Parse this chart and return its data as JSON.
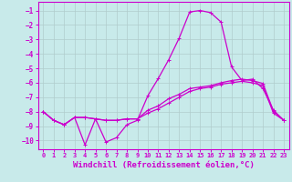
{
  "background_color": "#c8eaea",
  "grid_color": "#b0cccc",
  "line_color": "#cc00cc",
  "xlabel": "Windchill (Refroidissement éolien,°C)",
  "xlabel_fontsize": 6.5,
  "xlim": [
    -0.5,
    23.5
  ],
  "ylim": [
    -10.6,
    -0.4
  ],
  "yticks": [
    -1,
    -2,
    -3,
    -4,
    -5,
    -6,
    -7,
    -8,
    -9,
    -10
  ],
  "xticks": [
    0,
    1,
    2,
    3,
    4,
    5,
    6,
    7,
    8,
    9,
    10,
    11,
    12,
    13,
    14,
    15,
    16,
    17,
    18,
    19,
    20,
    21,
    22,
    23
  ],
  "line1_x": [
    0,
    1,
    2,
    3,
    4,
    5,
    6,
    7,
    8,
    9,
    10,
    11,
    12,
    13,
    14,
    15,
    16,
    17,
    18,
    19,
    20,
    21,
    22,
    23
  ],
  "line1_y": [
    -8.0,
    -8.6,
    -8.9,
    -8.4,
    -10.3,
    -8.5,
    -10.1,
    -9.8,
    -8.9,
    -8.6,
    -6.9,
    -5.7,
    -4.4,
    -2.9,
    -1.1,
    -1.0,
    -1.15,
    -1.8,
    -4.9,
    -5.85,
    -5.75,
    -6.4,
    -7.9,
    -8.6
  ],
  "line2_x": [
    0,
    1,
    2,
    3,
    4,
    5,
    6,
    7,
    8,
    9,
    10,
    11,
    12,
    13,
    14,
    15,
    16,
    17,
    18,
    19,
    20,
    21,
    22,
    23
  ],
  "line2_y": [
    -8.0,
    -8.6,
    -8.9,
    -8.4,
    -8.4,
    -8.5,
    -8.6,
    -8.6,
    -8.5,
    -8.5,
    -8.1,
    -7.8,
    -7.4,
    -7.0,
    -6.6,
    -6.4,
    -6.3,
    -6.1,
    -6.0,
    -5.9,
    -6.0,
    -6.2,
    -8.1,
    -8.6
  ],
  "line3_x": [
    0,
    1,
    2,
    3,
    4,
    5,
    6,
    7,
    8,
    9,
    10,
    11,
    12,
    13,
    14,
    15,
    16,
    17,
    18,
    19,
    20,
    21,
    22,
    23
  ],
  "line3_y": [
    -8.0,
    -8.6,
    -8.9,
    -8.4,
    -8.4,
    -8.5,
    -8.6,
    -8.6,
    -8.5,
    -8.5,
    -7.9,
    -7.6,
    -7.1,
    -6.8,
    -6.4,
    -6.3,
    -6.2,
    -6.0,
    -5.85,
    -5.75,
    -5.85,
    -6.05,
    -7.95,
    -8.6
  ],
  "marker": "+",
  "marker_size": 3,
  "linewidth": 0.9
}
